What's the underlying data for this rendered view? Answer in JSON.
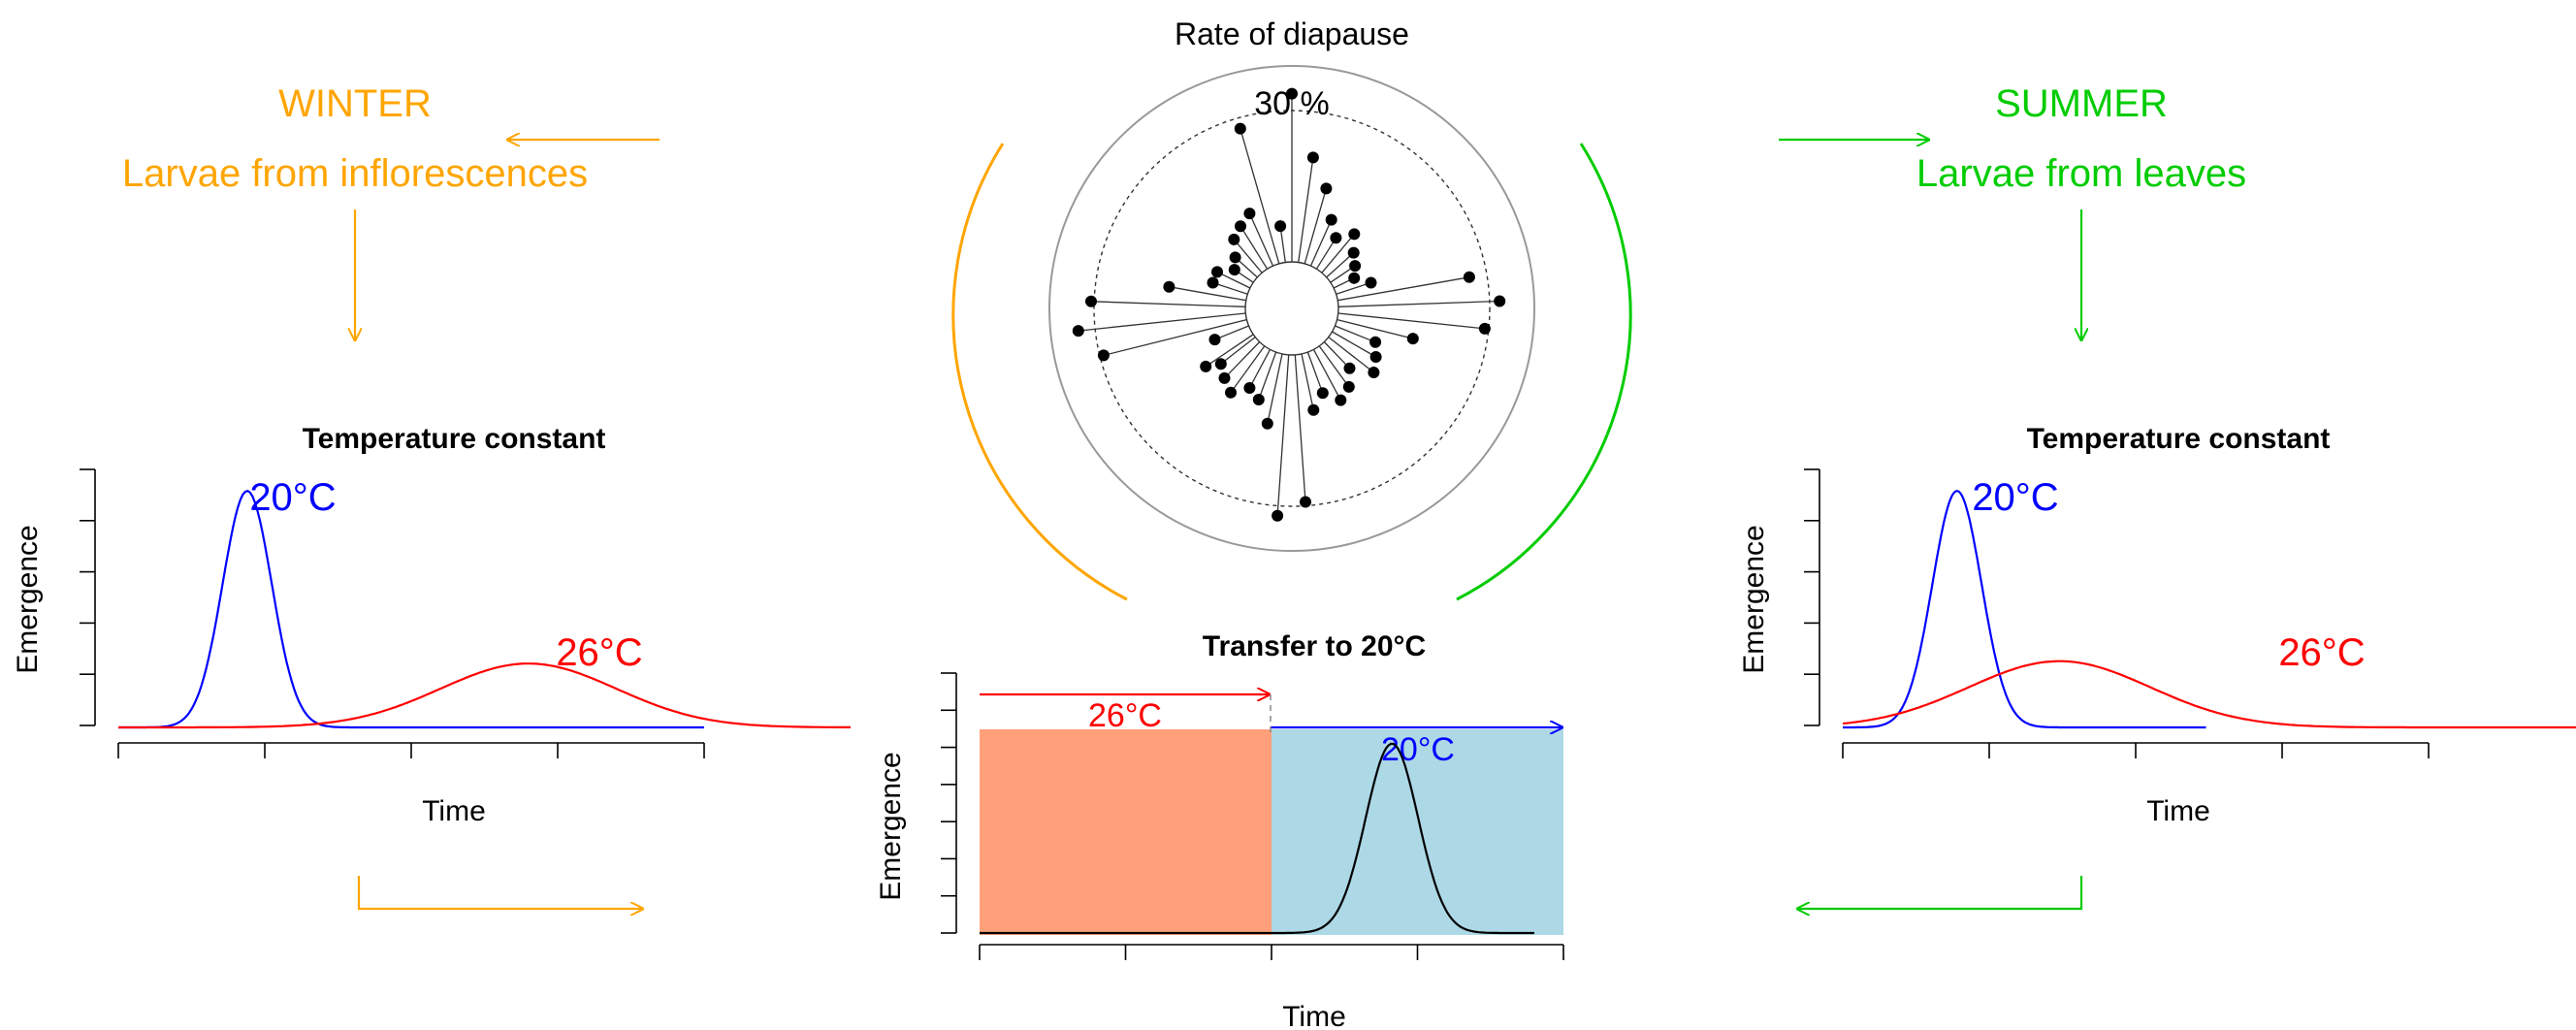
{
  "colors": {
    "winter": "#FFA500",
    "summer": "#00CC00",
    "cold": "#0000FF",
    "warm": "#FF0000",
    "warm_fill": "#FFA07A",
    "cold_fill": "#ADD8E6",
    "axis": "#000000",
    "ring": "#999999"
  },
  "header": {
    "winter_title": "WINTER",
    "winter_subtitle": "Larvae from inflorescences",
    "summer_title": "SUMMER",
    "summer_subtitle": "Larvae from leaves"
  },
  "icons": [
    "arrow-left-icon",
    "arrow-down-icon",
    "arrow-right-icon"
  ],
  "chart_data": [
    {
      "type": "line",
      "title": "Temperature constant",
      "xlabel": "Time",
      "ylabel": "Emergence",
      "x_ticks": 5,
      "y_ticks": 6,
      "grid": false,
      "xlim": [
        0,
        10
      ],
      "ylim": [
        0,
        1.05
      ],
      "curve_labels": [
        "20°C",
        "26°C"
      ],
      "series": [
        {
          "name": "20°C",
          "color": "#0000FF",
          "kind": "gaussian",
          "mean": 2.2,
          "sd": 0.42,
          "peak": 1.0,
          "x_range": [
            0,
            10
          ]
        },
        {
          "name": "26°C",
          "color": "#FF0000",
          "kind": "gaussian",
          "mean": 7.0,
          "sd": 1.5,
          "peak": 0.27,
          "x_range": [
            0,
            12.5
          ]
        }
      ]
    },
    {
      "type": "line",
      "title": "Transfer to 20°C",
      "xlabel": "Time",
      "ylabel": "Emergence",
      "x_ticks": 5,
      "y_ticks": 8,
      "grid": false,
      "xlim": [
        0,
        8
      ],
      "ylim": [
        0,
        7
      ],
      "phases": [
        {
          "label": "26°C",
          "color": "#FF0000",
          "fill": "#FFA07A",
          "x_from": 0,
          "x_to": 4
        },
        {
          "label": "20°C",
          "color": "#0000FF",
          "fill": "#ADD8E6",
          "x_from": 4,
          "x_to": 8
        }
      ],
      "series": [
        {
          "name": "",
          "color": "#000000",
          "kind": "gaussian",
          "mean": 5.65,
          "sd": 0.36,
          "peak": 5.1,
          "x_range": [
            0,
            7.6
          ]
        }
      ]
    },
    {
      "type": "line",
      "title": "Temperature constant",
      "xlabel": "Time",
      "ylabel": "Emergence",
      "x_ticks": 5,
      "y_ticks": 6,
      "grid": false,
      "xlim": [
        0,
        10
      ],
      "ylim": [
        0,
        1.05
      ],
      "curve_labels": [
        "20°C",
        "26°C"
      ],
      "series": [
        {
          "name": "20°C",
          "color": "#0000FF",
          "kind": "gaussian",
          "mean": 1.95,
          "sd": 0.42,
          "peak": 1.0,
          "x_range": [
            0,
            6.2
          ]
        },
        {
          "name": "26°C",
          "color": "#FF0000",
          "kind": "gaussian",
          "mean": 3.7,
          "sd": 1.55,
          "peak": 0.28,
          "x_range": [
            0,
            14.2
          ]
        }
      ]
    },
    {
      "type": "radar",
      "title": "Rate of diapause",
      "ring_label": "30 %",
      "r_max": 35,
      "dashed_ring": 30,
      "inner_hole": 4,
      "angles_deg": [
        0,
        8,
        16,
        24,
        32,
        40,
        48,
        56,
        64,
        72,
        80,
        88,
        96,
        104,
        112,
        120,
        128,
        136,
        144,
        152,
        160,
        168,
        176,
        184,
        192,
        200,
        208,
        216,
        224,
        232,
        236,
        248,
        256,
        264,
        272,
        280,
        288,
        296,
        304,
        312,
        320,
        328,
        336,
        344,
        352
      ],
      "values": [
        31,
        22,
        18,
        14,
        12,
        14,
        12,
        11,
        10,
        12,
        26,
        30,
        28,
        18,
        13,
        14,
        15,
        12,
        14,
        15,
        13,
        15,
        28,
        30,
        17,
        14,
        13,
        15,
        14,
        13,
        15,
        12,
        28,
        31,
        29,
        18,
        12,
        12,
        10,
        11,
        13,
        14,
        15,
        27,
        12
      ]
    }
  ]
}
